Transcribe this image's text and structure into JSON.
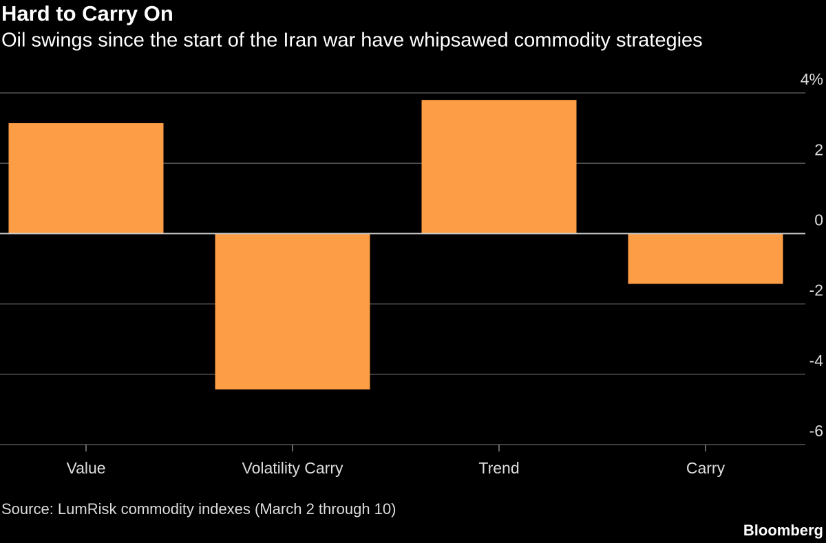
{
  "chart_data": {
    "type": "bar",
    "title": "Hard to Carry On",
    "subtitle": "Oil swings since the start of the Iran war have whipsawed commodity strategies",
    "categories": [
      "Value",
      "Volatility Carry",
      "Trend",
      "Carry"
    ],
    "values": [
      3.14,
      -4.43,
      3.8,
      -1.43
    ],
    "color": "#fd9d45",
    "ylim": [
      -6,
      4
    ],
    "yticks": [
      {
        "value": 4,
        "label": "4%"
      },
      2,
      0,
      -2,
      -4,
      -6
    ],
    "grid": true,
    "source": "Source: LumRisk commodity indexes (March 2 through 10)",
    "brand": "Bloomberg"
  }
}
